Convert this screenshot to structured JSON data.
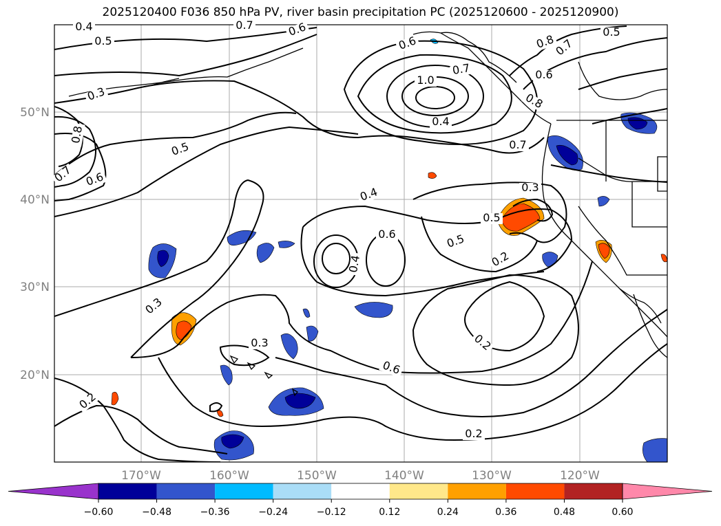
{
  "title": "2025120400 F036 850 hPa PV, river basin precipitation PC (2025120600 - 2025120900)",
  "map": {
    "lat_labels": [
      "50°N",
      "40°N",
      "30°N",
      "20°N"
    ],
    "lon_labels": [
      "170°W",
      "160°W",
      "150°W",
      "140°W",
      "130°W",
      "120°W"
    ],
    "contour_labels": [
      "0.4",
      "0.5",
      "0.7",
      "0.6",
      "0.3",
      "0.8",
      "0.7",
      "0.6",
      "0.5",
      "1.0",
      "0.7",
      "0.6",
      "0.8",
      "0.5",
      "0.4",
      "0.7",
      "0.6",
      "0.8",
      "0.7",
      "0.3",
      "0.4",
      "0.6",
      "0.5",
      "0.5",
      "0.4",
      "0.2",
      "0.3",
      "0.3",
      "0.6",
      "0.2",
      "0.2",
      "0.2"
    ]
  },
  "colorbar": {
    "tick_labels": [
      "−0.60",
      "−0.48",
      "−0.36",
      "−0.24",
      "−0.12",
      "0.12",
      "0.24",
      "0.36",
      "0.48",
      "0.60"
    ],
    "colors": [
      "#9933cc",
      "#000099",
      "#3355cc",
      "#00bbff",
      "#aaddf7",
      "#ffffff",
      "#ffe88a",
      "#ffa000",
      "#ff4a00",
      "#b22222",
      "#ff88aa"
    ]
  }
}
